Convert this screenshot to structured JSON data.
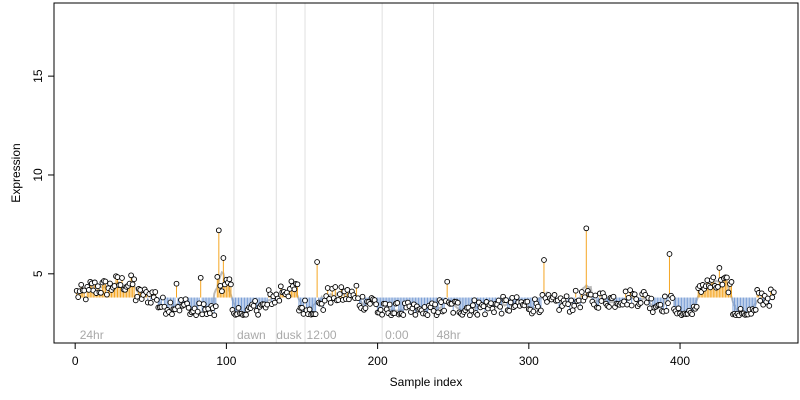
{
  "chart_data": {
    "type": "scatter",
    "title": "",
    "xlabel": "Sample index",
    "ylabel": "Expression",
    "xlim": [
      -14,
      478
    ],
    "ylim": [
      1.5,
      18.7
    ],
    "xticks": [
      0,
      100,
      200,
      300,
      400
    ],
    "yticks": [
      5,
      10,
      15
    ],
    "baseline": 3.8,
    "grid": false,
    "legend": "none",
    "colors": {
      "point_fill": "#ffffff",
      "point_stroke": "#000000",
      "above_baseline": "#f5a623",
      "below_baseline": "#7b9fd6",
      "smooth_line": "#a9a9a9",
      "divider": "#e0e0e0",
      "annotation": "#a9a9a9"
    },
    "dividers": [
      105,
      133,
      152,
      203,
      237
    ],
    "annotations": [
      {
        "x": 3,
        "text": "24hr"
      },
      {
        "x": 107,
        "text": "dawn"
      },
      {
        "x": 133,
        "text": "dusk"
      },
      {
        "x": 153,
        "text": "12:00"
      },
      {
        "x": 205,
        "text": "0:00"
      },
      {
        "x": 239,
        "text": "48hr"
      }
    ],
    "spikes": [
      {
        "x": 95,
        "y": 7.2
      },
      {
        "x": 98,
        "y": 5.8
      },
      {
        "x": 100,
        "y": 4.7
      },
      {
        "x": 160,
        "y": 5.6
      },
      {
        "x": 310,
        "y": 5.7
      },
      {
        "x": 338,
        "y": 7.3
      },
      {
        "x": 393,
        "y": 6.0
      },
      {
        "x": 83,
        "y": 4.8
      },
      {
        "x": 67,
        "y": 4.5
      },
      {
        "x": 246,
        "y": 4.6
      },
      {
        "x": 426,
        "y": 5.3
      },
      {
        "x": 186,
        "y": 4.4
      }
    ],
    "segments": [
      {
        "from": 0,
        "to": 10,
        "y": 4.0
      },
      {
        "from": 10,
        "to": 25,
        "y": 4.3
      },
      {
        "from": 25,
        "to": 40,
        "y": 4.5
      },
      {
        "from": 40,
        "to": 55,
        "y": 3.9
      },
      {
        "from": 55,
        "to": 75,
        "y": 3.4
      },
      {
        "from": 75,
        "to": 94,
        "y": 3.1
      },
      {
        "from": 94,
        "to": 104,
        "y": 4.4
      },
      {
        "from": 104,
        "to": 118,
        "y": 3.0
      },
      {
        "from": 118,
        "to": 128,
        "y": 3.3
      },
      {
        "from": 128,
        "to": 136,
        "y": 3.8
      },
      {
        "from": 136,
        "to": 148,
        "y": 4.2
      },
      {
        "from": 148,
        "to": 165,
        "y": 3.3
      },
      {
        "from": 165,
        "to": 185,
        "y": 3.9
      },
      {
        "from": 185,
        "to": 200,
        "y": 3.6
      },
      {
        "from": 200,
        "to": 240,
        "y": 3.1
      },
      {
        "from": 240,
        "to": 275,
        "y": 3.3
      },
      {
        "from": 275,
        "to": 305,
        "y": 3.4
      },
      {
        "from": 305,
        "to": 330,
        "y": 3.5
      },
      {
        "from": 330,
        "to": 360,
        "y": 3.7
      },
      {
        "from": 360,
        "to": 380,
        "y": 3.8
      },
      {
        "from": 380,
        "to": 398,
        "y": 3.5
      },
      {
        "from": 398,
        "to": 412,
        "y": 3.0
      },
      {
        "from": 412,
        "to": 435,
        "y": 4.4
      },
      {
        "from": 435,
        "to": 451,
        "y": 3.0
      },
      {
        "from": 451,
        "to": 462,
        "y": 3.8
      }
    ],
    "n_points": 462
  }
}
